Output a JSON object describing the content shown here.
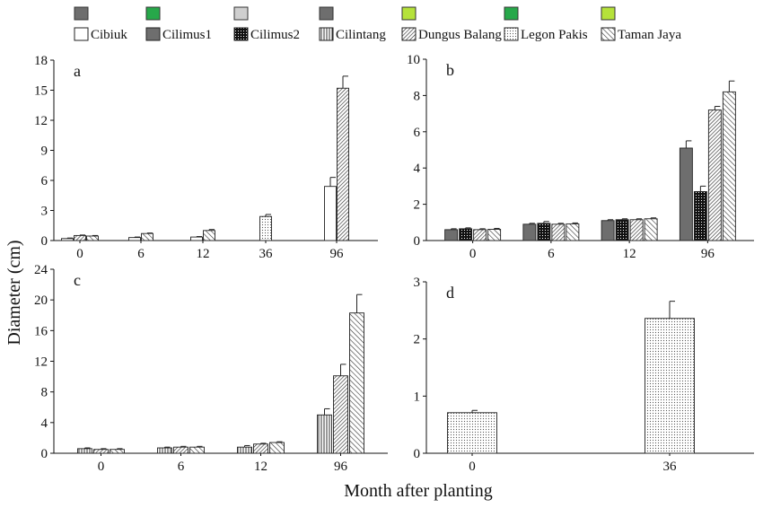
{
  "figure": {
    "ylabel": "Diameter (cm)",
    "xlabel": "Month after planting"
  },
  "legend": [
    {
      "name": "Cibiuk",
      "pattern": "white",
      "swatch": "#6e6e6e"
    },
    {
      "name": "Cilimus1",
      "pattern": "solid-gray",
      "swatch": "#27a84a"
    },
    {
      "name": "Cilimus2",
      "pattern": "black-dots",
      "swatch": "#cfcfcf"
    },
    {
      "name": "Cilintang",
      "pattern": "vertical-lines",
      "swatch": "#6e6e6e"
    },
    {
      "name": "Dungus Balang",
      "pattern": "diag-dense",
      "swatch": "#b5e23a"
    },
    {
      "name": "Legon Pakis",
      "pattern": "light-dots",
      "swatch": "#27a84a"
    },
    {
      "name": "Taman Jaya",
      "pattern": "diag-sparse",
      "swatch": "#b5e23a"
    }
  ],
  "chart_data": [
    {
      "type": "bar",
      "panel": "a",
      "categories": [
        "0",
        "6",
        "12",
        "36",
        "96"
      ],
      "ylim": [
        0,
        18
      ],
      "yticks": [
        0,
        3,
        6,
        9,
        12,
        15,
        18
      ],
      "series": [
        {
          "name": "Cibiuk",
          "pattern": "white",
          "values": [
            0.2,
            0.3,
            0.35,
            null,
            5.4
          ],
          "errors": [
            0.05,
            0.05,
            0.05,
            null,
            0.9
          ]
        },
        {
          "name": "Dungus Balang",
          "pattern": "diag-dense",
          "values": [
            0.5,
            null,
            null,
            null,
            null
          ],
          "errors": [
            0.05,
            null,
            null,
            null,
            null
          ]
        },
        {
          "name": "Taman Jaya",
          "pattern": "diag-sparse",
          "values": [
            0.45,
            0.7,
            1.0,
            null,
            null
          ],
          "errors": [
            0.05,
            0.05,
            0.1,
            null,
            null
          ]
        },
        {
          "name": "Legon Pakis",
          "pattern": "light-dots",
          "values": [
            null,
            null,
            null,
            2.4,
            null
          ],
          "errors": [
            null,
            null,
            null,
            0.2,
            null
          ]
        },
        {
          "name": "Dungus Balang",
          "pattern": "diag-dense",
          "values": [
            null,
            null,
            null,
            null,
            15.2
          ],
          "errors": [
            null,
            null,
            null,
            null,
            1.2
          ]
        }
      ]
    },
    {
      "type": "bar",
      "panel": "b",
      "categories": [
        "0",
        "6",
        "12",
        "96"
      ],
      "ylim": [
        0,
        10
      ],
      "yticks": [
        0,
        2,
        4,
        6,
        8,
        10
      ],
      "series": [
        {
          "name": "Cilimus1",
          "pattern": "solid-gray",
          "values": [
            0.6,
            0.9,
            1.1,
            5.1
          ],
          "errors": [
            0.05,
            0.05,
            0.05,
            0.4
          ]
        },
        {
          "name": "Cilimus2",
          "pattern": "black-dots",
          "values": [
            0.65,
            0.95,
            1.15,
            2.7
          ],
          "errors": [
            0.05,
            0.1,
            0.05,
            0.3
          ]
        },
        {
          "name": "Dungus Balang",
          "pattern": "diag-dense",
          "values": [
            0.6,
            0.9,
            1.15,
            7.2
          ],
          "errors": [
            0.05,
            0.05,
            0.05,
            0.2
          ]
        },
        {
          "name": "Taman Jaya",
          "pattern": "diag-sparse",
          "values": [
            0.62,
            0.92,
            1.2,
            8.2
          ],
          "errors": [
            0.05,
            0.05,
            0.05,
            0.6
          ]
        }
      ]
    },
    {
      "type": "bar",
      "panel": "c",
      "categories": [
        "0",
        "6",
        "12",
        "96"
      ],
      "ylim": [
        0,
        24
      ],
      "yticks": [
        0,
        4,
        8,
        12,
        16,
        20,
        24
      ],
      "series": [
        {
          "name": "Cilintang",
          "pattern": "vertical-lines",
          "values": [
            0.6,
            0.7,
            0.8,
            5.0
          ],
          "errors": [
            0.1,
            0.1,
            0.2,
            0.8
          ]
        },
        {
          "name": "Dungus Balang",
          "pattern": "diag-dense",
          "values": [
            0.5,
            0.8,
            1.2,
            10.1
          ],
          "errors": [
            0.1,
            0.1,
            0.1,
            1.5
          ]
        },
        {
          "name": "Taman Jaya",
          "pattern": "diag-sparse",
          "values": [
            0.5,
            0.8,
            1.4,
            18.3
          ],
          "errors": [
            0.1,
            0.1,
            0.1,
            2.4
          ]
        }
      ]
    },
    {
      "type": "bar",
      "panel": "d",
      "categories": [
        "0",
        "36"
      ],
      "ylim": [
        0,
        3
      ],
      "yticks": [
        0,
        1,
        2,
        3
      ],
      "series": [
        {
          "name": "Legon Pakis",
          "pattern": "light-dots",
          "values": [
            0.71,
            2.36
          ],
          "errors": [
            0.04,
            0.3
          ]
        }
      ]
    }
  ]
}
